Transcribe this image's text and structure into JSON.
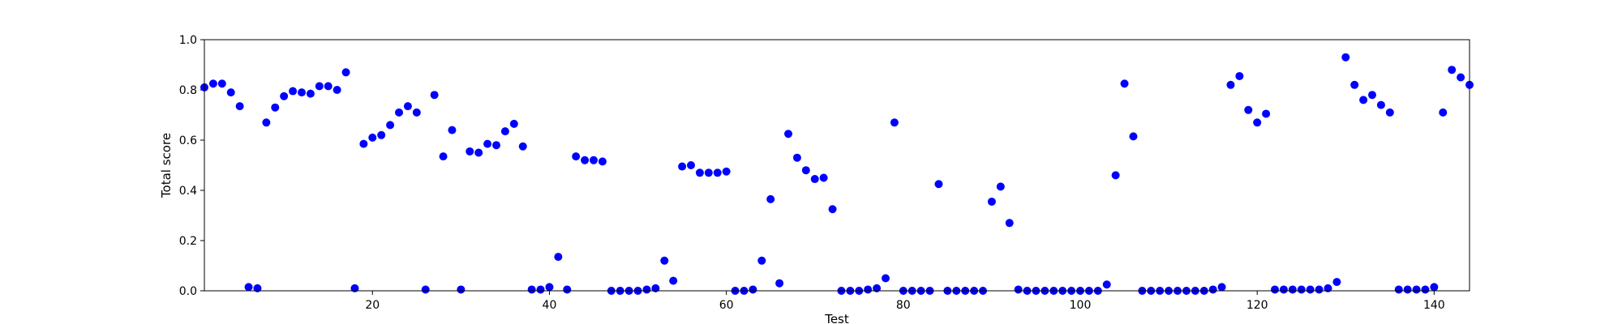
{
  "chart_data": {
    "type": "scatter",
    "title": "",
    "xlabel": "Test",
    "ylabel": "Total score",
    "xlim": [
      1,
      144
    ],
    "ylim": [
      0.0,
      1.0
    ],
    "xticks": [
      20,
      40,
      60,
      80,
      100,
      120,
      140
    ],
    "yticks": [
      0.0,
      0.2,
      0.4,
      0.6,
      0.8,
      1.0
    ],
    "xtick_labels": [
      "20",
      "40",
      "60",
      "80",
      "100",
      "120",
      "140"
    ],
    "ytick_labels": [
      "0.0",
      "0.2",
      "0.4",
      "0.6",
      "0.8",
      "1.0"
    ],
    "grid": false,
    "legend": false,
    "color": "#0000ff",
    "series": [
      {
        "values": [
          [
            1,
            0.81
          ],
          [
            2,
            0.825
          ],
          [
            3,
            0.825
          ],
          [
            4,
            0.79
          ],
          [
            5,
            0.735
          ],
          [
            6,
            0.015
          ],
          [
            7,
            0.01
          ],
          [
            8,
            0.67
          ],
          [
            9,
            0.73
          ],
          [
            10,
            0.775
          ],
          [
            11,
            0.795
          ],
          [
            12,
            0.79
          ],
          [
            13,
            0.785
          ],
          [
            14,
            0.815
          ],
          [
            15,
            0.815
          ],
          [
            16,
            0.8
          ],
          [
            17,
            0.87
          ],
          [
            18,
            0.01
          ],
          [
            19,
            0.585
          ],
          [
            20,
            0.61
          ],
          [
            21,
            0.62
          ],
          [
            22,
            0.66
          ],
          [
            23,
            0.71
          ],
          [
            24,
            0.735
          ],
          [
            25,
            0.71
          ],
          [
            26,
            0.005
          ],
          [
            27,
            0.78
          ],
          [
            28,
            0.535
          ],
          [
            29,
            0.64
          ],
          [
            30,
            0.005
          ],
          [
            31,
            0.555
          ],
          [
            32,
            0.55
          ],
          [
            33,
            0.585
          ],
          [
            34,
            0.58
          ],
          [
            35,
            0.635
          ],
          [
            36,
            0.665
          ],
          [
            37,
            0.575
          ],
          [
            38,
            0.005
          ],
          [
            39,
            0.005
          ],
          [
            40,
            0.015
          ],
          [
            41,
            0.135
          ],
          [
            42,
            0.005
          ],
          [
            43,
            0.535
          ],
          [
            44,
            0.52
          ],
          [
            45,
            0.52
          ],
          [
            46,
            0.515
          ],
          [
            47,
            0.0
          ],
          [
            48,
            0.0
          ],
          [
            49,
            0.0
          ],
          [
            50,
            0.0
          ],
          [
            51,
            0.005
          ],
          [
            52,
            0.01
          ],
          [
            53,
            0.12
          ],
          [
            54,
            0.04
          ],
          [
            55,
            0.495
          ],
          [
            56,
            0.5
          ],
          [
            57,
            0.47
          ],
          [
            58,
            0.47
          ],
          [
            59,
            0.47
          ],
          [
            60,
            0.475
          ],
          [
            61,
            0.0
          ],
          [
            62,
            0.0
          ],
          [
            63,
            0.005
          ],
          [
            64,
            0.12
          ],
          [
            65,
            0.365
          ],
          [
            66,
            0.03
          ],
          [
            67,
            0.625
          ],
          [
            68,
            0.53
          ],
          [
            69,
            0.48
          ],
          [
            70,
            0.445
          ],
          [
            71,
            0.45
          ],
          [
            72,
            0.325
          ],
          [
            73,
            0.0
          ],
          [
            74,
            0.0
          ],
          [
            75,
            0.0
          ],
          [
            76,
            0.005
          ],
          [
            77,
            0.01
          ],
          [
            78,
            0.05
          ],
          [
            79,
            0.67
          ],
          [
            80,
            0.0
          ],
          [
            81,
            0.0
          ],
          [
            82,
            0.0
          ],
          [
            83,
            0.0
          ],
          [
            84,
            0.425
          ],
          [
            85,
            0.0
          ],
          [
            86,
            0.0
          ],
          [
            87,
            0.0
          ],
          [
            88,
            0.0
          ],
          [
            89,
            0.0
          ],
          [
            90,
            0.355
          ],
          [
            91,
            0.415
          ],
          [
            92,
            0.27
          ],
          [
            93,
            0.005
          ],
          [
            94,
            0.0
          ],
          [
            95,
            0.0
          ],
          [
            96,
            0.0
          ],
          [
            97,
            0.0
          ],
          [
            98,
            0.0
          ],
          [
            99,
            0.0
          ],
          [
            100,
            0.0
          ],
          [
            101,
            0.0
          ],
          [
            102,
            0.0
          ],
          [
            103,
            0.025
          ],
          [
            104,
            0.46
          ],
          [
            105,
            0.825
          ],
          [
            106,
            0.615
          ],
          [
            107,
            0.0
          ],
          [
            108,
            0.0
          ],
          [
            109,
            0.0
          ],
          [
            110,
            0.0
          ],
          [
            111,
            0.0
          ],
          [
            112,
            0.0
          ],
          [
            113,
            0.0
          ],
          [
            114,
            0.0
          ],
          [
            115,
            0.005
          ],
          [
            116,
            0.015
          ],
          [
            117,
            0.82
          ],
          [
            118,
            0.855
          ],
          [
            119,
            0.72
          ],
          [
            120,
            0.67
          ],
          [
            121,
            0.705
          ],
          [
            122,
            0.005
          ],
          [
            123,
            0.005
          ],
          [
            124,
            0.005
          ],
          [
            125,
            0.005
          ],
          [
            126,
            0.005
          ],
          [
            127,
            0.005
          ],
          [
            128,
            0.01
          ],
          [
            129,
            0.035
          ],
          [
            130,
            0.93
          ],
          [
            131,
            0.82
          ],
          [
            132,
            0.76
          ],
          [
            133,
            0.78
          ],
          [
            134,
            0.74
          ],
          [
            135,
            0.71
          ],
          [
            136,
            0.005
          ],
          [
            137,
            0.005
          ],
          [
            138,
            0.005
          ],
          [
            139,
            0.005
          ],
          [
            140,
            0.015
          ],
          [
            141,
            0.71
          ],
          [
            142,
            0.88
          ],
          [
            143,
            0.85
          ],
          [
            144,
            0.82
          ]
        ]
      }
    ]
  }
}
